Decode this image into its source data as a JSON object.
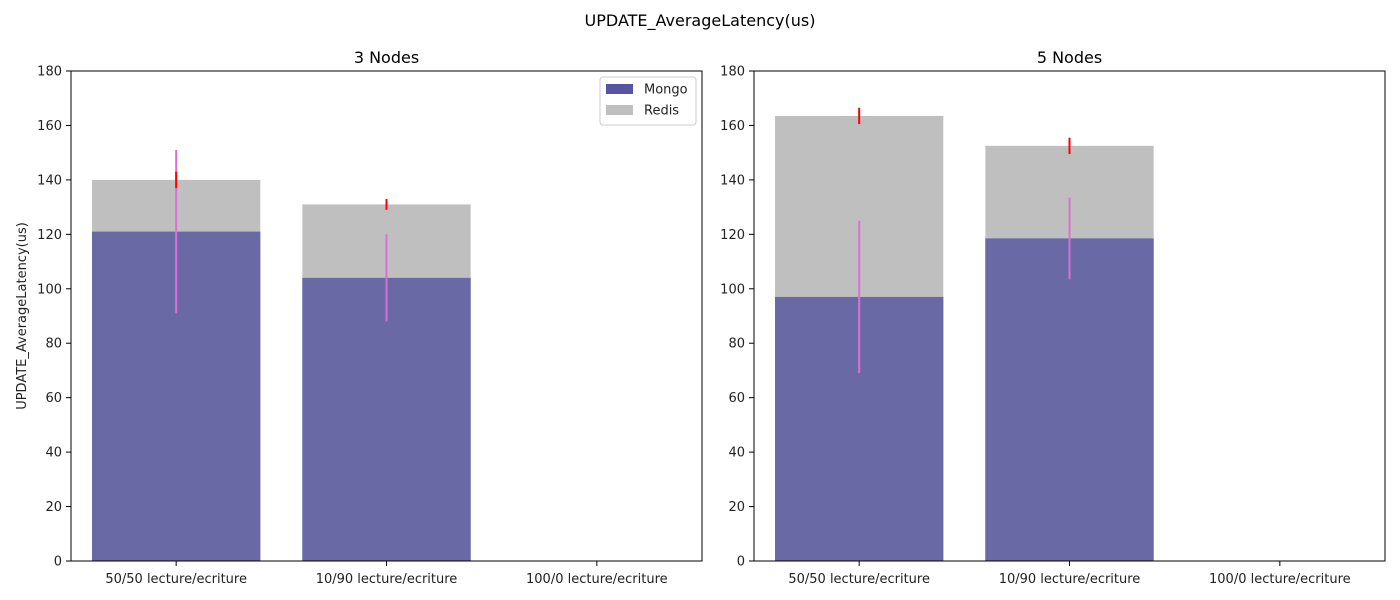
{
  "figure_title": "UPDATE_AverageLatency(us)",
  "colors": {
    "mongo": "#4c4c9c",
    "redis": "#bfbfbf",
    "mongo_error": "#da70d6",
    "redis_error": "#ff0000"
  },
  "chart_data": [
    {
      "type": "bar",
      "title": "3 Nodes",
      "xlabel": "",
      "ylabel": "UPDATE_AverageLatency(us)",
      "ylim": [
        0,
        180
      ],
      "yticks": [
        0,
        20,
        40,
        60,
        80,
        100,
        120,
        140,
        160,
        180
      ],
      "categories": [
        "50/50 lecture/ecriture",
        "10/90 lecture/ecriture",
        "100/0 lecture/ecriture"
      ],
      "legend": {
        "position": "top-right",
        "entries": [
          "Mongo",
          "Redis"
        ]
      },
      "series": [
        {
          "name": "Mongo",
          "values": [
            121,
            104,
            null
          ],
          "error": [
            30,
            16,
            null
          ]
        },
        {
          "name": "Redis",
          "values": [
            140,
            131,
            null
          ],
          "error": [
            3,
            2,
            null
          ]
        }
      ]
    },
    {
      "type": "bar",
      "title": "5 Nodes",
      "xlabel": "",
      "ylabel": "",
      "ylim": [
        0,
        180
      ],
      "yticks": [
        0,
        20,
        40,
        60,
        80,
        100,
        120,
        140,
        160,
        180
      ],
      "categories": [
        "50/50 lecture/ecriture",
        "10/90 lecture/ecriture",
        "100/0 lecture/ecriture"
      ],
      "legend": null,
      "series": [
        {
          "name": "Mongo",
          "values": [
            97,
            118.5,
            null
          ],
          "error": [
            28,
            15,
            null
          ]
        },
        {
          "name": "Redis",
          "values": [
            163.5,
            152.5,
            null
          ],
          "error": [
            3,
            3,
            null
          ]
        }
      ]
    }
  ]
}
